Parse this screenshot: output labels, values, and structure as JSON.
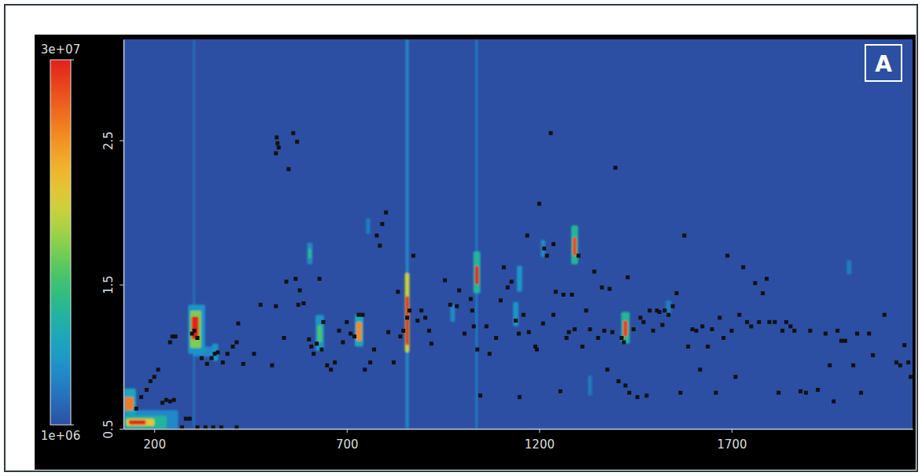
{
  "chart_data": {
    "type": "heatmap",
    "xlim": [
      120,
      2170
    ],
    "ylim": [
      0.5,
      3.2
    ],
    "xticks": [
      200,
      700,
      1200,
      1700
    ],
    "yticks": [
      0.5,
      1.5,
      2.5
    ],
    "annotations": [
      "A"
    ],
    "heatmap": {
      "range": [
        1000000,
        30000000
      ],
      "ticks": [
        {
          "value": 30000000,
          "label": "3e+07"
        },
        {
          "value": 1000000,
          "label": "1e+06"
        }
      ],
      "cells": [
        {
          "x": [
            122,
            262
          ],
          "y": [
            0.5,
            0.63
          ],
          "value": 5000000
        },
        {
          "x": [
            122,
            232
          ],
          "y": [
            0.5,
            0.59
          ],
          "value": 10000000
        },
        {
          "x": [
            128,
            200
          ],
          "y": [
            0.52,
            0.57
          ],
          "value": 20000000
        },
        {
          "x": [
            134,
            178
          ],
          "y": [
            0.53,
            0.56
          ],
          "value": 30000000
        },
        {
          "x": [
            122,
            152
          ],
          "y": [
            0.6,
            0.78
          ],
          "value": 8000000
        },
        {
          "x": [
            124,
            146
          ],
          "y": [
            0.63,
            0.72
          ],
          "value": 25000000
        },
        {
          "x": [
            300,
            306
          ],
          "y": [
            0.5,
            3.2
          ],
          "value": 3000000
        },
        {
          "x": [
            300,
            362
          ],
          "y": [
            1.0,
            1.07
          ],
          "value": 5000000
        },
        {
          "x": [
            288,
            332
          ],
          "y": [
            1.02,
            1.36
          ],
          "value": 6000000
        },
        {
          "x": [
            293,
            322
          ],
          "y": [
            1.06,
            1.32
          ],
          "value": 15000000
        },
        {
          "x": [
            297,
            315
          ],
          "y": [
            1.12,
            1.28
          ],
          "value": 30000000
        },
        {
          "x": [
            350,
            366
          ],
          "y": [
            0.97,
            1.09
          ],
          "value": 6000000
        },
        {
          "x": [
            597,
            611
          ],
          "y": [
            1.64,
            1.79
          ],
          "value": 5000000
        },
        {
          "x": [
            600,
            608
          ],
          "y": [
            1.68,
            1.75
          ],
          "value": 11000000
        },
        {
          "x": [
            619,
            641
          ],
          "y": [
            1.04,
            1.29
          ],
          "value": 6000000
        },
        {
          "x": [
            624,
            636
          ],
          "y": [
            1.1,
            1.22
          ],
          "value": 13000000
        },
        {
          "x": [
            721,
            743
          ],
          "y": [
            1.07,
            1.29
          ],
          "value": 8000000
        },
        {
          "x": [
            725,
            739
          ],
          "y": [
            1.11,
            1.24
          ],
          "value": 24000000
        },
        {
          "x": [
            750,
            761
          ],
          "y": [
            1.85,
            1.96
          ],
          "value": 4000000
        },
        {
          "x": [
            853,
            861
          ],
          "y": [
            0.5,
            3.2
          ],
          "value": 5000000
        },
        {
          "x": [
            851,
            863
          ],
          "y": [
            1.03,
            1.58
          ],
          "value": 18000000
        },
        {
          "x": [
            853,
            861
          ],
          "y": [
            1.08,
            1.42
          ],
          "value": 30000000
        },
        {
          "x": [
            1034,
            1040
          ],
          "y": [
            0.5,
            3.2
          ],
          "value": 4000000
        },
        {
          "x": [
            1029,
            1047
          ],
          "y": [
            1.44,
            1.73
          ],
          "value": 10000000
        },
        {
          "x": [
            1033,
            1043
          ],
          "y": [
            1.5,
            1.63
          ],
          "value": 30000000
        },
        {
          "x": [
            969,
            981
          ],
          "y": [
            1.24,
            1.36
          ],
          "value": 5000000
        },
        {
          "x": [
            1142,
            1156
          ],
          "y": [
            1.45,
            1.63
          ],
          "value": 6000000
        },
        {
          "x": [
            1132,
            1146
          ],
          "y": [
            1.21,
            1.38
          ],
          "value": 6000000
        },
        {
          "x": [
            1204,
            1216
          ],
          "y": [
            1.69,
            1.81
          ],
          "value": 5000000
        },
        {
          "x": [
            1283,
            1301
          ],
          "y": [
            1.64,
            1.91
          ],
          "value": 10000000
        },
        {
          "x": [
            1287,
            1297
          ],
          "y": [
            1.7,
            1.83
          ],
          "value": 28000000
        },
        {
          "x": [
            1327,
            1337
          ],
          "y": [
            0.73,
            0.87
          ],
          "value": 4000000
        },
        {
          "x": [
            1413,
            1435
          ],
          "y": [
            1.09,
            1.31
          ],
          "value": 10000000
        },
        {
          "x": [
            1418,
            1430
          ],
          "y": [
            1.14,
            1.25
          ],
          "value": 28000000
        },
        {
          "x": [
            1529,
            1543
          ],
          "y": [
            1.29,
            1.39
          ],
          "value": 4000000
        },
        {
          "x": [
            1999,
            2011
          ],
          "y": [
            1.57,
            1.67
          ],
          "value": 4000000
        }
      ]
    },
    "series": [
      {
        "type": "scatter",
        "marker": "square",
        "color": "#111111",
        "x": [
          153,
          166,
          180,
          190,
          200,
          210,
          221,
          231,
          241,
          251,
          272,
          282,
          292,
          312,
          333,
          353,
          374,
          414,
          241,
          247,
          255,
          298,
          304,
          312,
          323,
          337,
          349,
          357,
          365,
          378,
          390,
          404,
          414,
          418,
          431,
          459,
          476,
          506,
          516,
          537,
          543,
          567,
          574,
          578,
          588,
          602,
          608,
          614,
          622,
          629,
          635,
          639,
          649,
          659,
          669,
          680,
          690,
          700,
          710,
          720,
          731,
          741,
          747,
          761,
          771,
          778,
          786,
          792,
          802,
          808,
          822,
          833,
          839,
          847,
          857,
          863,
          873,
          884,
          894,
          904,
          914,
          920,
          518,
          520,
          523,
          516,
          549,
          561,
          571,
          955,
          969,
          986,
          992,
          1006,
          1022,
          1026,
          1030,
          1039,
          1047,
          1063,
          1071,
          1088,
          1100,
          1108,
          1118,
          1128,
          1139,
          1147,
          1149,
          1159,
          1169,
          1173,
          1190,
          1194,
          1200,
          1210,
          1220,
          1230,
          1237,
          1243,
          1255,
          1263,
          1271,
          1277,
          1285,
          1292,
          1302,
          1312,
          1322,
          1332,
          1343,
          1353,
          1363,
          1369,
          1377,
          1383,
          1390,
          1398,
          1406,
          1414,
          1420,
          1424,
          1430,
          1434,
          1445,
          1455,
          1463,
          1471,
          1479,
          1487,
          1496,
          1506,
          1512,
          1520,
          1526,
          1536,
          1547,
          1557,
          1567,
          1577,
          1587,
          1598,
          1608,
          1618,
          1624,
          1638,
          1649,
          1659,
          1669,
          1679,
          1689,
          1700,
          1710,
          1720,
          1730,
          1740,
          1751,
          1761,
          1771,
          1781,
          1791,
          1798,
          1812,
          1822,
          1832,
          1842,
          1853,
          1863,
          1879,
          1893,
          1904,
          1924,
          1944,
          1955,
          1965,
          1975,
          1985,
          1995,
          2016,
          2026,
          2036,
          2057,
          2067,
          2097,
          2128,
          2138,
          2149,
          2159,
          2165,
          1237,
          1213
        ],
        "values": [
          0.64,
          0.72,
          0.77,
          0.83,
          0.86,
          0.91,
          0.68,
          0.7,
          0.69,
          0.7,
          0.51,
          0.57,
          0.57,
          0.51,
          0.51,
          0.51,
          0.51,
          0.51,
          1.1,
          1.14,
          1.14,
          1.16,
          1.18,
          1.13,
          0.99,
          0.95,
          0.99,
          1.02,
          1.03,
          0.96,
          1.02,
          1.07,
          1.1,
          1.23,
          0.95,
          1.02,
          1.36,
          0.94,
          1.35,
          1.13,
          1.52,
          1.54,
          1.36,
          1.46,
          1.37,
          1.12,
          1.07,
          1.02,
          1.09,
          1.54,
          1.05,
          1.24,
          0.94,
          0.91,
          0.96,
          1.18,
          1.1,
          1.24,
          1.16,
          1.14,
          1.29,
          1.29,
          0.91,
          0.96,
          1.05,
          1.84,
          1.77,
          1.92,
          2.0,
          1.17,
          0.96,
          1.45,
          1.14,
          1.18,
          1.27,
          1.32,
          1.7,
          1.25,
          1.32,
          1.27,
          1.18,
          1.09,
          2.52,
          2.48,
          2.45,
          2.41,
          2.3,
          2.55,
          2.49,
          1.53,
          1.36,
          1.35,
          1.46,
          1.16,
          1.4,
          1.32,
          1.21,
          1.05,
          0.73,
          1.21,
          1.02,
          1.13,
          1.39,
          1.62,
          1.48,
          1.52,
          1.25,
          1.16,
          0.72,
          1.29,
          1.84,
          1.17,
          1.07,
          1.05,
          2.06,
          1.23,
          1.7,
          2.55,
          1.29,
          1.45,
          0.76,
          1.43,
          1.13,
          1.17,
          1.43,
          1.19,
          1.7,
          1.07,
          1.32,
          1.19,
          1.59,
          1.13,
          1.48,
          1.18,
          0.91,
          1.47,
          1.17,
          2.31,
          0.83,
          1.13,
          1.1,
          0.8,
          1.55,
          0.75,
          1.19,
          0.72,
          1.27,
          1.24,
          0.73,
          1.32,
          1.18,
          1.32,
          1.31,
          1.22,
          1.32,
          1.29,
          1.35,
          1.44,
          0.75,
          1.84,
          1.07,
          1.19,
          1.18,
          0.91,
          1.21,
          1.07,
          1.19,
          0.75,
          1.27,
          1.13,
          1.7,
          1.18,
          0.86,
          1.29,
          1.62,
          1.24,
          1.21,
          1.51,
          1.24,
          1.44,
          1.54,
          1.24,
          1.24,
          0.75,
          1.18,
          1.24,
          1.21,
          1.18,
          0.76,
          0.75,
          1.18,
          0.77,
          1.16,
          0.94,
          0.69,
          1.18,
          1.11,
          1.11,
          0.94,
          1.16,
          0.75,
          1.16,
          1.01,
          1.29,
          0.96,
          0.94,
          1.08,
          0.96,
          0.86,
          1.78,
          1.75
        ]
      }
    ]
  }
}
